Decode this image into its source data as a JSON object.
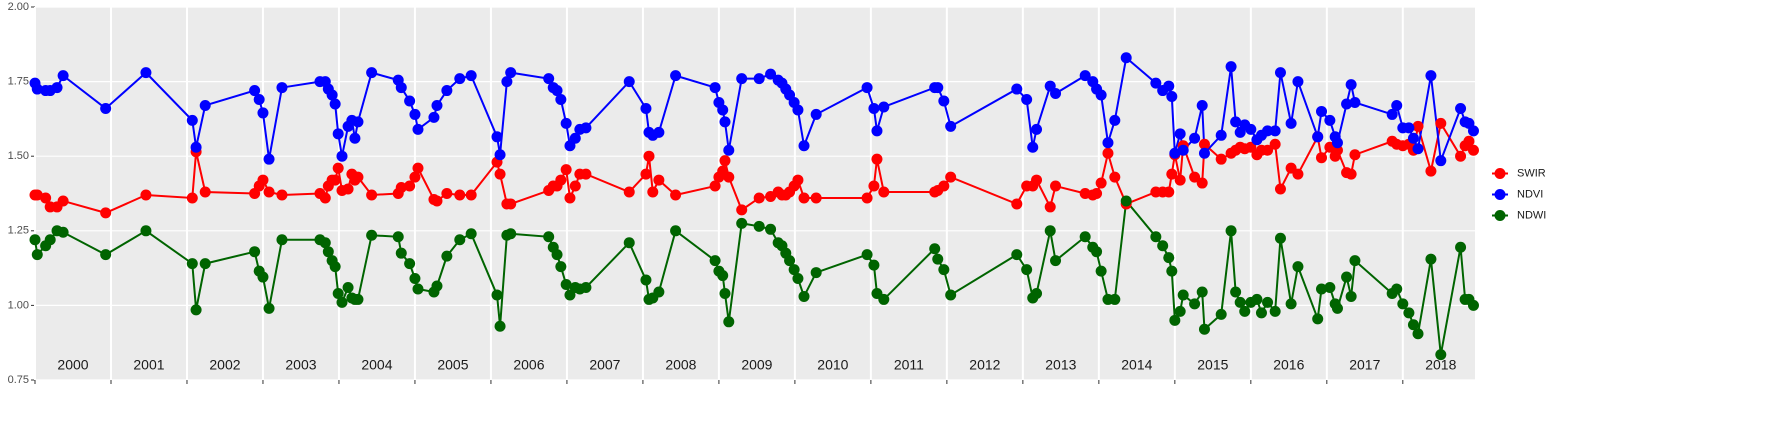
{
  "chart_data": {
    "type": "line",
    "x": [
      2000.0,
      2000.03,
      2000.14,
      2000.2,
      2000.29,
      2000.37,
      2000.93,
      2001.46,
      2002.07,
      2002.12,
      2002.24,
      2002.89,
      2002.95,
      2003.0,
      2003.08,
      2003.25,
      2003.75,
      2003.82,
      2003.86,
      2003.91,
      2003.95,
      2003.99,
      2004.04,
      2004.12,
      2004.17,
      2004.21,
      2004.25,
      2004.43,
      2004.78,
      2004.82,
      2004.93,
      2005.0,
      2005.04,
      2005.25,
      2005.29,
      2005.42,
      2005.59,
      2005.74,
      2006.08,
      2006.12,
      2006.21,
      2006.26,
      2006.76,
      2006.82,
      2006.87,
      2006.92,
      2006.99,
      2007.04,
      2007.11,
      2007.17,
      2007.25,
      2007.82,
      2008.04,
      2008.08,
      2008.13,
      2008.21,
      2008.43,
      2008.95,
      2009.0,
      2009.05,
      2009.08,
      2009.13,
      2009.3,
      2009.53,
      2009.68,
      2009.78,
      2009.83,
      2009.88,
      2009.93,
      2009.99,
      2010.04,
      2010.12,
      2010.28,
      2010.95,
      2011.04,
      2011.08,
      2011.17,
      2011.84,
      2011.88,
      2011.96,
      2012.05,
      2012.92,
      2013.05,
      2013.13,
      2013.18,
      2013.36,
      2013.43,
      2013.82,
      2013.92,
      2013.97,
      2014.03,
      2014.12,
      2014.21,
      2014.36,
      2014.75,
      2014.84,
      2014.92,
      2014.96,
      2015.0,
      2015.07,
      2015.11,
      2015.26,
      2015.36,
      2015.39,
      2015.61,
      2015.74,
      2015.8,
      2015.86,
      2015.92,
      2016.0,
      2016.08,
      2016.14,
      2016.22,
      2016.32,
      2016.39,
      2016.53,
      2016.62,
      2016.88,
      2016.93,
      2017.04,
      2017.11,
      2017.14,
      2017.26,
      2017.32,
      2017.37,
      2017.86,
      2017.92,
      2018.0,
      2018.08,
      2018.14,
      2018.2,
      2018.37,
      2018.5,
      2018.76,
      2018.82,
      2018.87,
      2018.93
    ],
    "series": [
      {
        "name": "SWIR",
        "color": "#ff0000",
        "values": [
          1.37,
          1.37,
          1.36,
          1.33,
          1.33,
          1.35,
          1.31,
          1.37,
          1.36,
          1.515,
          1.38,
          1.375,
          1.4,
          1.42,
          1.38,
          1.37,
          1.375,
          1.36,
          1.4,
          1.42,
          1.42,
          1.46,
          1.385,
          1.39,
          1.44,
          1.42,
          1.43,
          1.37,
          1.375,
          1.395,
          1.4,
          1.43,
          1.46,
          1.355,
          1.35,
          1.375,
          1.37,
          1.37,
          1.48,
          1.44,
          1.34,
          1.34,
          1.385,
          1.4,
          1.4,
          1.42,
          1.455,
          1.36,
          1.4,
          1.44,
          1.44,
          1.38,
          1.44,
          1.5,
          1.38,
          1.42,
          1.37,
          1.4,
          1.43,
          1.45,
          1.485,
          1.43,
          1.32,
          1.36,
          1.365,
          1.38,
          1.37,
          1.37,
          1.38,
          1.4,
          1.42,
          1.36,
          1.36,
          1.36,
          1.4,
          1.49,
          1.38,
          1.38,
          1.385,
          1.4,
          1.43,
          1.34,
          1.4,
          1.4,
          1.42,
          1.33,
          1.4,
          1.375,
          1.37,
          1.375,
          1.41,
          1.51,
          1.43,
          1.34,
          1.38,
          1.38,
          1.38,
          1.44,
          1.505,
          1.42,
          1.535,
          1.43,
          1.41,
          1.54,
          1.49,
          1.51,
          1.52,
          1.53,
          1.525,
          1.53,
          1.505,
          1.52,
          1.52,
          1.54,
          1.39,
          1.46,
          1.44,
          1.565,
          1.495,
          1.53,
          1.5,
          1.52,
          1.445,
          1.44,
          1.505,
          1.55,
          1.54,
          1.535,
          1.54,
          1.52,
          1.6,
          1.45,
          1.61,
          1.5,
          1.535,
          1.55,
          1.52
        ]
      },
      {
        "name": "NDVI",
        "color": "#0000ff",
        "values": [
          1.745,
          1.725,
          1.72,
          1.72,
          1.73,
          1.77,
          1.66,
          1.78,
          1.62,
          1.53,
          1.67,
          1.72,
          1.69,
          1.645,
          1.49,
          1.73,
          1.75,
          1.75,
          1.725,
          1.705,
          1.675,
          1.575,
          1.5,
          1.6,
          1.62,
          1.56,
          1.615,
          1.78,
          1.755,
          1.73,
          1.685,
          1.64,
          1.59,
          1.63,
          1.67,
          1.72,
          1.76,
          1.77,
          1.565,
          1.505,
          1.75,
          1.78,
          1.76,
          1.73,
          1.72,
          1.69,
          1.61,
          1.535,
          1.56,
          1.59,
          1.595,
          1.75,
          1.66,
          1.58,
          1.57,
          1.58,
          1.77,
          1.73,
          1.68,
          1.655,
          1.615,
          1.52,
          1.76,
          1.76,
          1.775,
          1.755,
          1.745,
          1.725,
          1.705,
          1.68,
          1.655,
          1.535,
          1.64,
          1.73,
          1.66,
          1.585,
          1.665,
          1.73,
          1.73,
          1.685,
          1.6,
          1.725,
          1.69,
          1.53,
          1.59,
          1.735,
          1.71,
          1.77,
          1.75,
          1.725,
          1.705,
          1.545,
          1.62,
          1.83,
          1.745,
          1.72,
          1.735,
          1.7,
          1.51,
          1.575,
          1.52,
          1.56,
          1.67,
          1.51,
          1.57,
          1.8,
          1.615,
          1.58,
          1.605,
          1.59,
          1.555,
          1.57,
          1.585,
          1.585,
          1.78,
          1.61,
          1.75,
          1.565,
          1.65,
          1.62,
          1.565,
          1.545,
          1.675,
          1.74,
          1.68,
          1.64,
          1.67,
          1.595,
          1.595,
          1.56,
          1.525,
          1.77,
          1.485,
          1.66,
          1.615,
          1.61,
          1.585
        ]
      },
      {
        "name": "NDWI",
        "color": "#006400",
        "values": [
          1.22,
          1.17,
          1.2,
          1.22,
          1.25,
          1.245,
          1.17,
          1.25,
          1.14,
          0.985,
          1.14,
          1.18,
          1.115,
          1.095,
          0.99,
          1.22,
          1.22,
          1.21,
          1.18,
          1.15,
          1.13,
          1.04,
          1.01,
          1.06,
          1.025,
          1.02,
          1.02,
          1.235,
          1.23,
          1.175,
          1.14,
          1.09,
          1.055,
          1.045,
          1.065,
          1.165,
          1.22,
          1.24,
          1.035,
          0.93,
          1.235,
          1.24,
          1.23,
          1.195,
          1.17,
          1.13,
          1.07,
          1.035,
          1.06,
          1.055,
          1.06,
          1.21,
          1.085,
          1.02,
          1.025,
          1.045,
          1.25,
          1.15,
          1.115,
          1.1,
          1.04,
          0.945,
          1.275,
          1.265,
          1.255,
          1.21,
          1.2,
          1.175,
          1.15,
          1.12,
          1.09,
          1.03,
          1.11,
          1.17,
          1.135,
          1.04,
          1.02,
          1.19,
          1.155,
          1.12,
          1.035,
          1.17,
          1.12,
          1.025,
          1.04,
          1.25,
          1.15,
          1.23,
          1.195,
          1.18,
          1.115,
          1.02,
          1.02,
          1.35,
          1.23,
          1.2,
          1.16,
          1.115,
          0.95,
          0.98,
          1.035,
          1.005,
          1.045,
          0.92,
          0.97,
          1.25,
          1.045,
          1.01,
          0.98,
          1.01,
          1.02,
          0.975,
          1.01,
          0.98,
          1.225,
          1.005,
          1.13,
          0.955,
          1.055,
          1.06,
          1.005,
          0.99,
          1.095,
          1.03,
          1.15,
          1.04,
          1.055,
          1.005,
          0.975,
          0.935,
          0.905,
          1.155,
          0.835,
          1.195,
          1.02,
          1.02,
          1.0
        ]
      }
    ],
    "xlim": [
      2000,
      2018.95
    ],
    "xticks": [
      2000,
      2001,
      2002,
      2003,
      2004,
      2005,
      2006,
      2007,
      2008,
      2009,
      2010,
      2011,
      2012,
      2013,
      2014,
      2015,
      2016,
      2017,
      2018
    ],
    "year_labels": [
      {
        "value": 2000.5,
        "label": "2000"
      },
      {
        "value": 2001.5,
        "label": "2001"
      },
      {
        "value": 2002.5,
        "label": "2002"
      },
      {
        "value": 2003.5,
        "label": "2003"
      },
      {
        "value": 2004.5,
        "label": "2004"
      },
      {
        "value": 2005.5,
        "label": "2005"
      },
      {
        "value": 2006.5,
        "label": "2006"
      },
      {
        "value": 2007.5,
        "label": "2007"
      },
      {
        "value": 2008.5,
        "label": "2008"
      },
      {
        "value": 2009.5,
        "label": "2009"
      },
      {
        "value": 2010.5,
        "label": "2010"
      },
      {
        "value": 2011.5,
        "label": "2011"
      },
      {
        "value": 2012.5,
        "label": "2012"
      },
      {
        "value": 2013.5,
        "label": "2013"
      },
      {
        "value": 2014.5,
        "label": "2014"
      },
      {
        "value": 2015.5,
        "label": "2015"
      },
      {
        "value": 2016.5,
        "label": "2016"
      },
      {
        "value": 2017.5,
        "label": "2017"
      },
      {
        "value": 2018.5,
        "label": "2018"
      }
    ],
    "ylim": [
      0.75,
      2.0
    ],
    "yticks": [
      {
        "value": 0.75,
        "label": "0.75"
      },
      {
        "value": 1,
        "label": "1.00"
      },
      {
        "value": 1.25,
        "label": "1.25"
      },
      {
        "value": 1.5,
        "label": "1.50"
      },
      {
        "value": 1.75,
        "label": "1.75"
      },
      {
        "value": 2,
        "label": "2.00"
      }
    ],
    "grid": true,
    "legend": "right"
  }
}
